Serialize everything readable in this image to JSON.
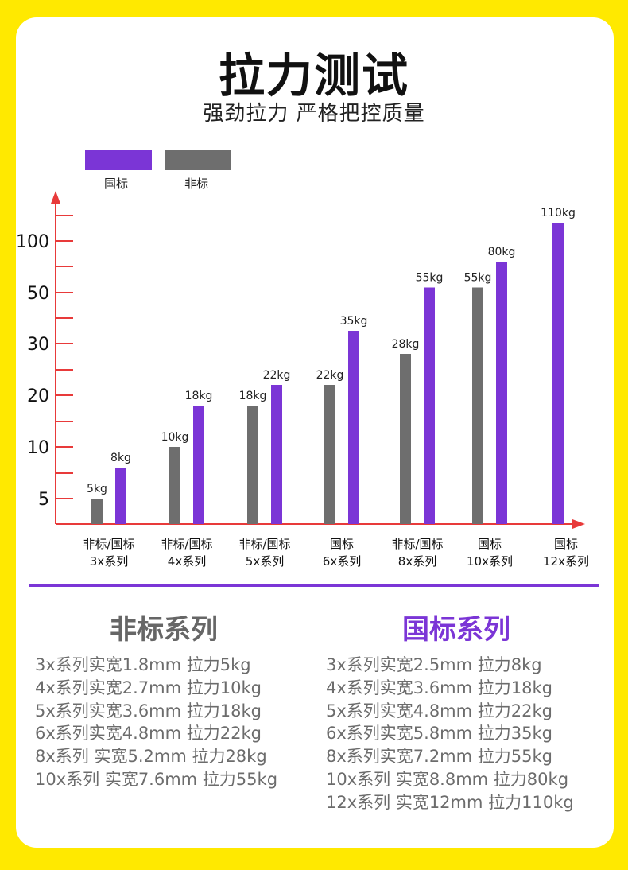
{
  "header": {
    "title": "拉力测试",
    "subtitle": "强劲拉力 严格把控质量"
  },
  "colors": {
    "background": "#ffe900",
    "standard": "#7b35d6",
    "nonstandard": "#6e6e6e",
    "axis": "#e83a3a"
  },
  "legend": [
    {
      "label": "国标",
      "color": "#7b35d6"
    },
    {
      "label": "非标",
      "color": "#6e6e6e"
    }
  ],
  "chart_data": {
    "type": "bar",
    "title": "",
    "xlabel": "",
    "ylabel": "",
    "y_ticks": [
      "5",
      "10",
      "20",
      "30",
      "50",
      "100"
    ],
    "grid": false,
    "legend_position": "top-left",
    "categories": [
      {
        "line1": "非标/国标",
        "line2": "3x系列"
      },
      {
        "line1": "非标/国标",
        "line2": "4x系列"
      },
      {
        "line1": "非标/国标",
        "line2": "5x系列"
      },
      {
        "line1": "国标",
        "line2": "6x系列"
      },
      {
        "line1": "非标/国标",
        "line2": "8x系列"
      },
      {
        "line1": "国标",
        "line2": "10x系列"
      },
      {
        "line1": "国标",
        "line2": "12x系列"
      }
    ],
    "series": [
      {
        "name": "非标",
        "values": [
          5,
          10,
          18,
          22,
          28,
          55,
          null
        ],
        "labels": [
          "5kg",
          "10kg",
          "18kg",
          "22kg",
          "28kg",
          "55kg",
          ""
        ]
      },
      {
        "name": "国标",
        "values": [
          8,
          18,
          22,
          35,
          55,
          80,
          110
        ],
        "labels": [
          "8kg",
          "18kg",
          "22kg",
          "35kg",
          "55kg",
          "80kg",
          "110kg"
        ]
      }
    ]
  },
  "nonstandard_section": {
    "title": "非标系列",
    "items": [
      "3x系列实宽1.8mm 拉力5kg",
      "4x系列实宽2.7mm 拉力10kg",
      "5x系列实宽3.6mm 拉力18kg",
      "6x系列实宽4.8mm 拉力22kg",
      "8x系列 实宽5.2mm 拉力28kg",
      "10x系列 实宽7.6mm 拉力55kg"
    ]
  },
  "standard_section": {
    "title": "国标系列",
    "items": [
      "3x系列实宽2.5mm 拉力8kg",
      "4x系列实宽3.6mm 拉力18kg",
      "5x系列实宽4.8mm 拉力22kg",
      "6x系列实宽5.8mm 拉力35kg",
      "8x系列实宽7.2mm 拉力55kg",
      "10x系列 实宽8.8mm 拉力80kg",
      "12x系列 实宽12mm 拉力110kg"
    ]
  }
}
